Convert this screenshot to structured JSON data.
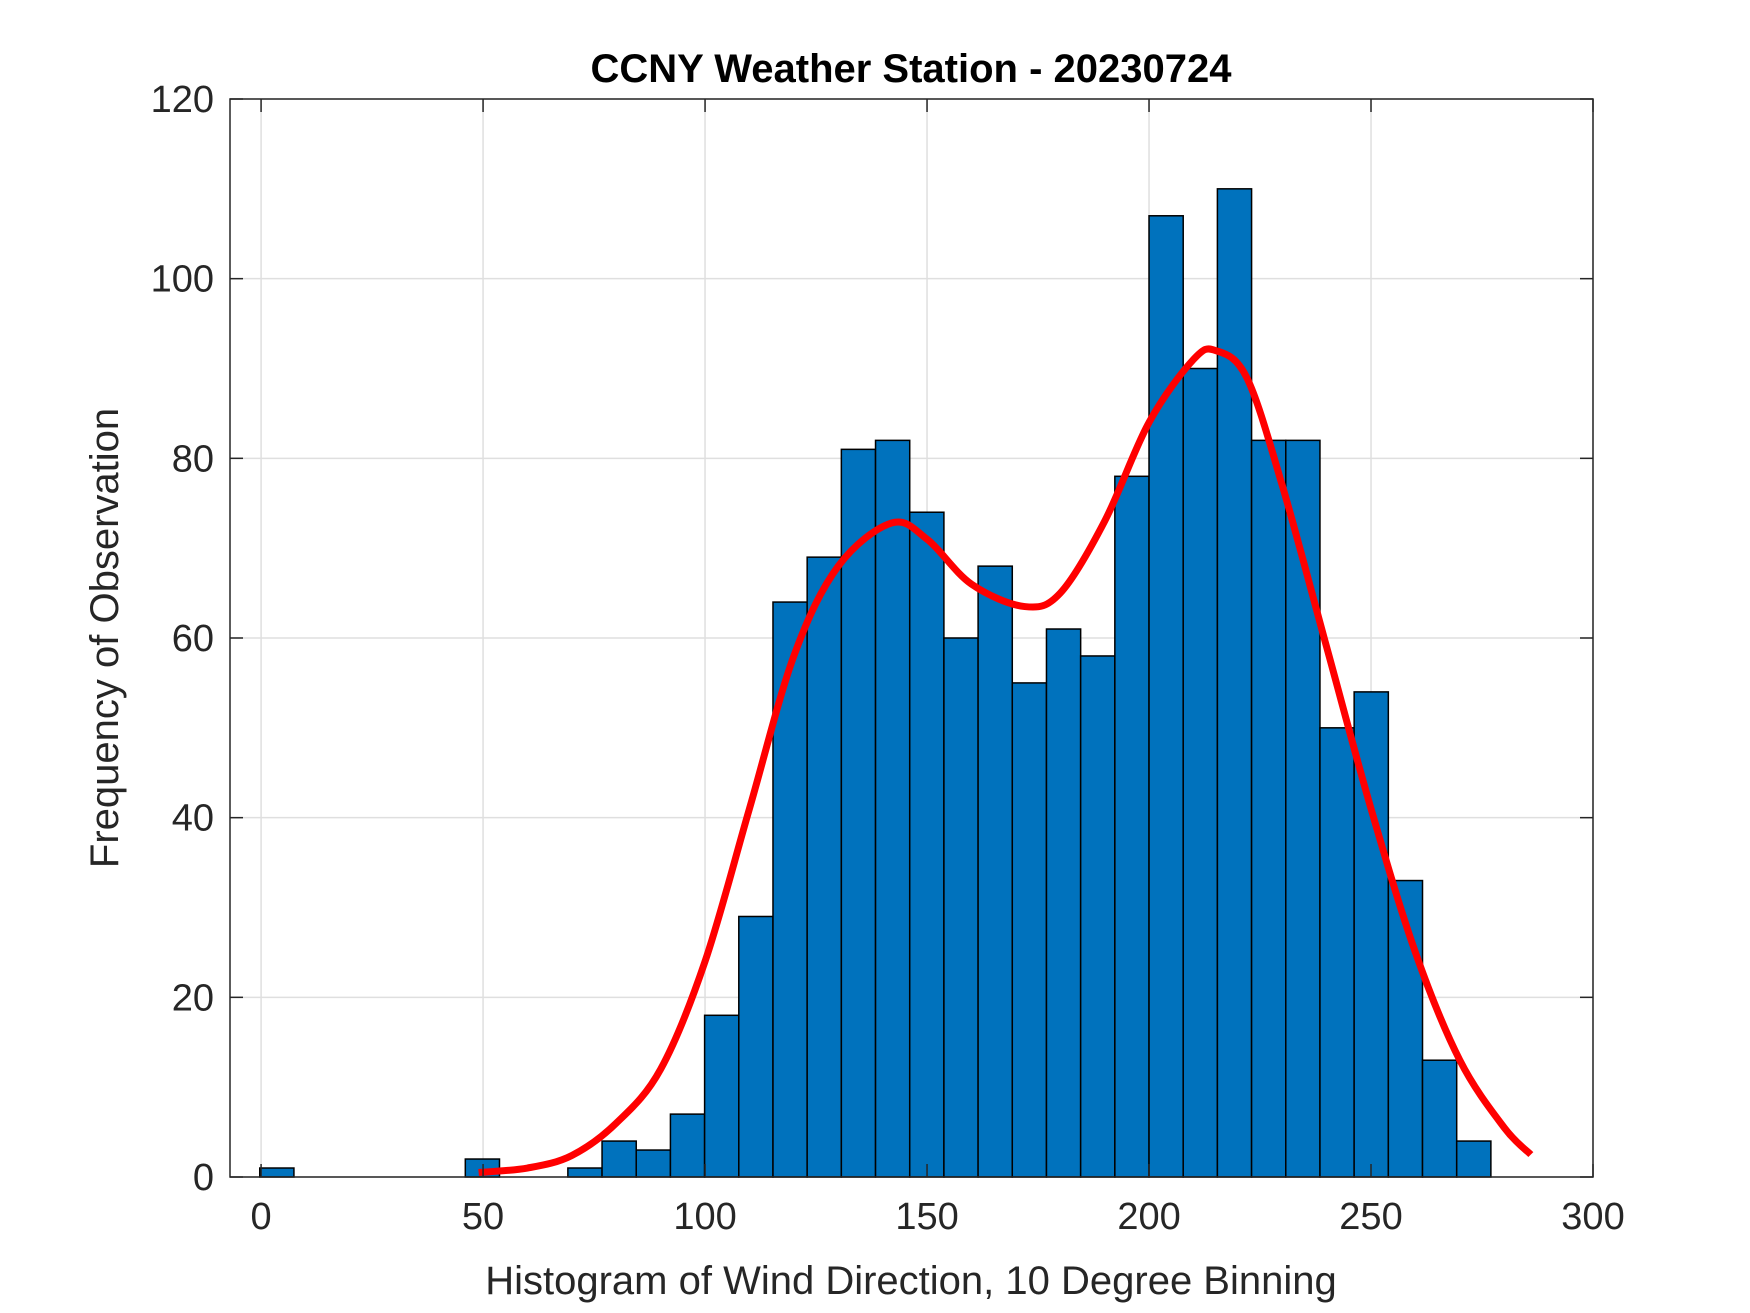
{
  "chart_data": {
    "type": "bar",
    "title": "CCNY Weather Station - 20230724",
    "xlabel": "Histogram of Wind Direction, 10 Degree Binning",
    "ylabel": "Frequency of Observation",
    "xlim": [
      -7,
      300
    ],
    "ylim": [
      0,
      120
    ],
    "xticks": [
      0,
      50,
      100,
      150,
      200,
      250,
      300
    ],
    "yticks": [
      0,
      20,
      40,
      60,
      80,
      100,
      120
    ],
    "grid": true,
    "bin_width": 7.7,
    "bins": [
      {
        "start": -0.3,
        "value": 1
      },
      {
        "start": 46.0,
        "value": 2
      },
      {
        "start": 69.1,
        "value": 1
      },
      {
        "start": 76.8,
        "value": 4
      },
      {
        "start": 84.5,
        "value": 3
      },
      {
        "start": 92.2,
        "value": 7
      },
      {
        "start": 99.9,
        "value": 18
      },
      {
        "start": 107.6,
        "value": 29
      },
      {
        "start": 115.3,
        "value": 64
      },
      {
        "start": 123.0,
        "value": 69
      },
      {
        "start": 130.7,
        "value": 81
      },
      {
        "start": 138.4,
        "value": 82
      },
      {
        "start": 146.1,
        "value": 74
      },
      {
        "start": 153.8,
        "value": 60
      },
      {
        "start": 161.5,
        "value": 68
      },
      {
        "start": 169.2,
        "value": 55
      },
      {
        "start": 176.9,
        "value": 61
      },
      {
        "start": 184.6,
        "value": 58
      },
      {
        "start": 192.3,
        "value": 78
      },
      {
        "start": 200.0,
        "value": 107
      },
      {
        "start": 207.7,
        "value": 90
      },
      {
        "start": 215.4,
        "value": 110
      },
      {
        "start": 223.1,
        "value": 82
      },
      {
        "start": 230.8,
        "value": 82
      },
      {
        "start": 238.5,
        "value": 50
      },
      {
        "start": 246.2,
        "value": 54
      },
      {
        "start": 253.9,
        "value": 33
      },
      {
        "start": 261.6,
        "value": 13
      },
      {
        "start": 269.3,
        "value": 4
      }
    ],
    "bar_color": "#0072BD",
    "bar_edge_color": "#000000",
    "fit_curve": {
      "color": "#FF0000",
      "points": [
        [
          49,
          0.5
        ],
        [
          60,
          1.0
        ],
        [
          70,
          2.4
        ],
        [
          80,
          6
        ],
        [
          90,
          12
        ],
        [
          100,
          24
        ],
        [
          110,
          41
        ],
        [
          120,
          58
        ],
        [
          130,
          68
        ],
        [
          142,
          72.8
        ],
        [
          150,
          71
        ],
        [
          160,
          66
        ],
        [
          172,
          63.5
        ],
        [
          180,
          65
        ],
        [
          190,
          73
        ],
        [
          200,
          84
        ],
        [
          210,
          91
        ],
        [
          215,
          92
        ],
        [
          222,
          89
        ],
        [
          230,
          77
        ],
        [
          240,
          59
        ],
        [
          250,
          41
        ],
        [
          260,
          25
        ],
        [
          270,
          13
        ],
        [
          280,
          5.5
        ],
        [
          286,
          2.5
        ]
      ]
    }
  }
}
